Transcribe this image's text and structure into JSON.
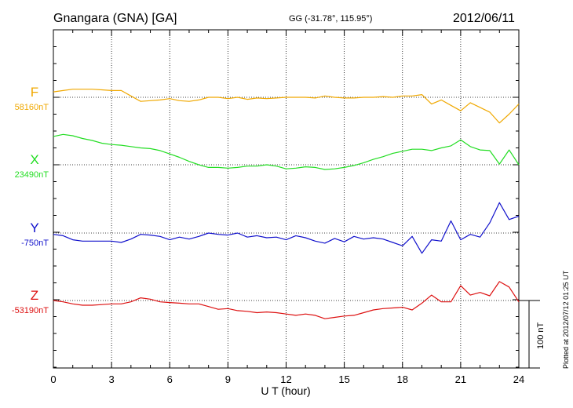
{
  "header": {
    "station": "Gnangara (GNA)  [GA]",
    "coords": "GG (-31.78°, 115.95°)",
    "date": "2012/06/11"
  },
  "footer": {
    "plotted": "Plotted at 2012/07/12 01:25 UT",
    "scale_label": "100 nT"
  },
  "chart_data": {
    "type": "line",
    "title": "Gnangara (GNA)  [GA]",
    "xlabel": "U T (hour)",
    "xlim": [
      0,
      24
    ],
    "x_ticks": [
      "0",
      "3",
      "6",
      "9",
      "12",
      "15",
      "18",
      "21",
      "24"
    ],
    "grid": true,
    "scale_bar_nT": 100,
    "x": [
      0,
      0.5,
      1,
      1.5,
      2,
      2.5,
      3,
      3.5,
      4,
      4.5,
      5,
      5.5,
      6,
      6.5,
      7,
      7.5,
      8,
      8.5,
      9,
      9.5,
      10,
      10.5,
      11,
      11.5,
      12,
      12.5,
      13,
      13.5,
      14,
      14.5,
      15,
      15.5,
      16,
      16.5,
      17,
      17.5,
      18,
      18.5,
      19,
      19.5,
      20,
      20.5,
      21,
      21.5,
      22,
      22.5,
      23,
      23.5,
      24
    ],
    "series": [
      {
        "name": "F",
        "baseline_label": "58160nT",
        "color": "#f0a800",
        "offset_nT": [
          8,
          10,
          12,
          12,
          12,
          11,
          10,
          10,
          2,
          -6,
          -5,
          -4,
          -2,
          -5,
          -6,
          -4,
          0,
          0,
          -2,
          0,
          -3,
          -1,
          -2,
          -1,
          0,
          0,
          0,
          -1,
          2,
          0,
          -1,
          -1,
          0,
          0,
          1,
          0,
          2,
          2,
          4,
          -10,
          -4,
          -12,
          -20,
          -8,
          -15,
          -22,
          -38,
          -25,
          -10
        ]
      },
      {
        "name": "X",
        "baseline_label": "23490nT",
        "color": "#22dd22",
        "offset_nT": [
          42,
          45,
          43,
          39,
          36,
          32,
          30,
          29,
          27,
          25,
          24,
          21,
          16,
          11,
          5,
          0,
          -4,
          -4,
          -5,
          -4,
          -2,
          -2,
          0,
          -2,
          -6,
          -5,
          -3,
          -4,
          -7,
          -6,
          -4,
          -1,
          3,
          8,
          12,
          17,
          20,
          23,
          23,
          21,
          25,
          28,
          37,
          27,
          22,
          21,
          1,
          22,
          0
        ]
      },
      {
        "name": "Y",
        "baseline_label": "-750nT",
        "color": "#1111cc",
        "offset_nT": [
          -2,
          -4,
          -10,
          -12,
          -12,
          -12,
          -12,
          -14,
          -9,
          -2,
          -3,
          -5,
          -10,
          -6,
          -9,
          -5,
          0,
          -2,
          -3,
          0,
          -6,
          -4,
          -7,
          -6,
          -10,
          -4,
          -7,
          -12,
          -15,
          -8,
          -13,
          -5,
          -9,
          -7,
          -9,
          -14,
          -19,
          -5,
          -30,
          -10,
          -12,
          18,
          -10,
          -2,
          -6,
          15,
          45,
          20,
          25
        ]
      },
      {
        "name": "Z",
        "baseline_label": "-53190nT",
        "color": "#dd1111",
        "offset_nT": [
          0,
          -2,
          -5,
          -7,
          -7,
          -6,
          -5,
          -5,
          -2,
          4,
          2,
          -2,
          -3,
          -4,
          -5,
          -5,
          -9,
          -13,
          -12,
          -15,
          -16,
          -18,
          -17,
          -18,
          -20,
          -22,
          -20,
          -22,
          -27,
          -25,
          -23,
          -22,
          -18,
          -14,
          -12,
          -11,
          -10,
          -14,
          -4,
          8,
          -2,
          -2,
          22,
          8,
          12,
          7,
          28,
          20,
          -2
        ]
      }
    ]
  }
}
